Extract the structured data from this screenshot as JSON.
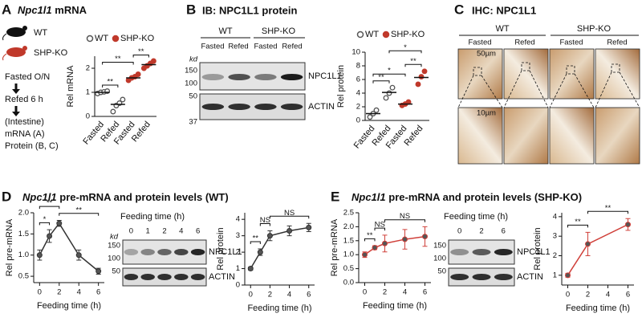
{
  "panels": {
    "A": {
      "label": "A",
      "title_gene": "Npc1l1",
      "title_rest": "mRNA",
      "mouse_labels": [
        "WT",
        "SHP-KO"
      ],
      "steps": [
        "Fasted O/N",
        "Refed 6 h",
        "(Intestine)",
        "mRNA (A)",
        "Protein (B, C)"
      ]
    },
    "B": {
      "label": "B",
      "title": "IB: NPC1L1 protein",
      "groups": [
        "WT",
        "SHP-KO"
      ],
      "lanes": [
        "Fasted",
        "Refed",
        "Fasted",
        "Refed"
      ],
      "kd": "kd",
      "markers": [
        150,
        100,
        50,
        37
      ],
      "bands": [
        "NPC1L1",
        "ACTIN"
      ]
    },
    "C": {
      "label": "C",
      "title": "IHC: NPC1L1",
      "groups": [
        "WT",
        "SHP-KO"
      ],
      "lanes": [
        "Fasted",
        "Refed",
        "Fasted",
        "Refed"
      ],
      "scales": [
        "50µm",
        "10µm"
      ]
    },
    "D": {
      "label": "D",
      "title_gene": "Npc1l1",
      "title_rest": "pre-mRNA and protein levels (WT)",
      "blot": {
        "header": "Feeding time (h)",
        "lanes": [
          0,
          1,
          2,
          4,
          6
        ],
        "kd": "kd",
        "markers": [
          150,
          100,
          50
        ],
        "bands": [
          "NPC1L1",
          "ACTIN"
        ]
      }
    },
    "E": {
      "label": "E",
      "title_gene": "Npc1l1",
      "title_rest": "pre-mRNA and protein levels (SHP-KO)",
      "blot": {
        "header": "Feeding time (h)",
        "lanes": [
          0,
          2,
          6
        ],
        "markers": [
          150,
          100,
          50
        ],
        "bands": [
          "NPC1L1",
          "ACTIN"
        ]
      }
    }
  },
  "chart_data": [
    {
      "type": "dot",
      "ylabel": "Rel mRNA",
      "categories": [
        "Fasted",
        "Refed",
        "Fasted",
        "Refed"
      ],
      "series": [
        {
          "name": "WT",
          "color": "#555555",
          "values": [
            [
              0.95,
              1.0,
              1.02,
              1.05
            ],
            [
              0.2,
              0.45,
              0.55,
              0.7
            ],
            null,
            null
          ],
          "means": [
            1.0,
            0.5,
            null,
            null
          ]
        },
        {
          "name": "SHP-KO",
          "color": "#c0392b",
          "values": [
            null,
            null,
            [
              1.5,
              1.6,
              1.65,
              1.75
            ],
            [
              2.0,
              2.1,
              2.2,
              2.3
            ]
          ],
          "means": [
            null,
            null,
            1.6,
            2.15
          ]
        }
      ],
      "ylim": [
        0,
        2.5
      ],
      "yticks": [
        0,
        1,
        2
      ],
      "significance": [
        {
          "text": "**",
          "between": [
            0,
            1
          ]
        },
        {
          "text": "**",
          "between": [
            0,
            2
          ]
        },
        {
          "text": "**",
          "between": [
            2,
            3
          ]
        }
      ]
    },
    {
      "type": "dot",
      "ylabel": "Rel protein",
      "categories": [
        "Fasted",
        "Refed",
        "Fasted",
        "Refed"
      ],
      "series": [
        {
          "name": "WT",
          "color": "#555555",
          "values": [
            [
              0.5,
              1.0,
              1.5
            ],
            [
              3.3,
              4.0,
              4.8
            ],
            null,
            null
          ],
          "means": [
            1.0,
            4.1,
            null,
            null
          ]
        },
        {
          "name": "SHP-KO",
          "color": "#c0392b",
          "values": [
            null,
            null,
            [
              2.2,
              2.4,
              2.7
            ],
            [
              5.3,
              6.4,
              7.2
            ]
          ],
          "means": [
            null,
            null,
            2.4,
            6.3
          ]
        }
      ],
      "ylim": [
        0,
        10
      ],
      "yticks": [
        0,
        2,
        4,
        6,
        8,
        10
      ],
      "significance": [
        {
          "text": "**",
          "between": [
            0,
            1
          ]
        },
        {
          "text": "*",
          "between": [
            0,
            2
          ]
        },
        {
          "text": "**",
          "between": [
            2,
            3
          ]
        },
        {
          "text": "*",
          "between": [
            1,
            3
          ]
        }
      ]
    },
    {
      "type": "line",
      "ylabel": "Rel pre-mRNA",
      "xlabel": "Feeding time (h)",
      "x": [
        0,
        1,
        2,
        4,
        6
      ],
      "xlim": [
        -0.6,
        6.6
      ],
      "xticks": [
        0,
        2,
        4,
        6
      ],
      "ylim": [
        0.35,
        2.0
      ],
      "yticks": [
        0.5,
        {
          "value": 1,
          "label": "1.0"
        },
        1.5,
        {
          "value": 2,
          "label": "2.0"
        }
      ],
      "series": [
        {
          "color": "#333333",
          "values": [
            1.0,
            1.45,
            1.75,
            1.0,
            0.62
          ],
          "errors": [
            0.12,
            0.15,
            0.07,
            0.12,
            0.07
          ]
        }
      ],
      "significance": [
        {
          "text": "*",
          "between": [
            0,
            1
          ]
        },
        {
          "text": "**",
          "between": [
            0,
            2
          ]
        },
        {
          "text": "**",
          "between": [
            2,
            4
          ]
        }
      ]
    },
    {
      "type": "line",
      "ylabel": "Rel protein",
      "xlabel": "Feeding time (h)",
      "x": [
        0,
        1,
        2,
        4,
        6
      ],
      "xlim": [
        -0.6,
        6.6
      ],
      "xticks": [
        0,
        2,
        4,
        6
      ],
      "ylim": [
        0,
        4.4
      ],
      "yticks": [
        0,
        1,
        2,
        3,
        4
      ],
      "series": [
        {
          "color": "#333333",
          "values": [
            1.0,
            2.0,
            3.0,
            3.3,
            3.5
          ],
          "errors": [
            0.1,
            0.2,
            0.3,
            0.3,
            0.25
          ]
        }
      ],
      "significance": [
        {
          "text": "**",
          "between": [
            0,
            1
          ]
        },
        {
          "text": "NS",
          "between": [
            1,
            2
          ]
        },
        {
          "text": "NS",
          "between": [
            2,
            4
          ]
        }
      ]
    },
    {
      "type": "line",
      "ylabel": "Rel pre-mRNA",
      "xlabel": "Feeding time (h)",
      "x": [
        0,
        1,
        2,
        4,
        6
      ],
      "xlim": [
        -0.6,
        6.6
      ],
      "xticks": [
        0,
        2,
        4,
        6
      ],
      "ylim": [
        0,
        2.5
      ],
      "yticks": [
        {
          "value": 0,
          "label": "0.0"
        },
        0.5,
        {
          "value": 1,
          "label": "1.0"
        },
        1.5,
        {
          "value": 2,
          "label": "2.0"
        },
        2.5
      ],
      "series": [
        {
          "color": "#d0403a",
          "values": [
            1.0,
            1.25,
            1.4,
            1.55,
            1.65
          ],
          "errors": [
            0.1,
            0.07,
            0.3,
            0.35,
            0.35
          ]
        }
      ],
      "significance": [
        {
          "text": "**",
          "between": [
            0,
            1
          ]
        },
        {
          "text": "NS",
          "between": [
            1,
            2
          ]
        },
        {
          "text": "NS",
          "between": [
            2,
            4
          ]
        }
      ]
    },
    {
      "type": "line",
      "ylabel": "Rel protein",
      "xlabel": "Feeding time (h)",
      "x": [
        0,
        2,
        6
      ],
      "xlim": [
        -0.6,
        6.6
      ],
      "xticks": [
        0,
        2,
        4,
        6
      ],
      "ylim": [
        0.5,
        4.2
      ],
      "yticks": [
        1,
        2,
        3,
        4
      ],
      "series": [
        {
          "color": "#d0403a",
          "values": [
            1.0,
            2.6,
            3.6
          ],
          "errors": [
            0.1,
            0.6,
            0.3
          ]
        }
      ],
      "significance": [
        {
          "text": "**",
          "between": [
            0,
            1
          ]
        },
        {
          "text": "**",
          "between": [
            1,
            2
          ]
        }
      ]
    }
  ]
}
